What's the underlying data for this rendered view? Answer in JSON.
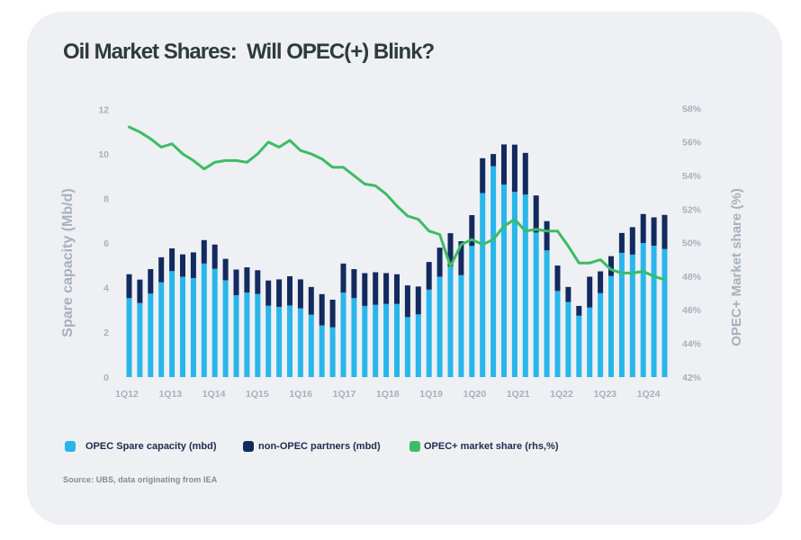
{
  "chart_data": {
    "type": "bar+line",
    "title": "Oil Market Shares:  Will OPEC(+) Blink?",
    "source": "Source: UBS, data originating from IEA",
    "categories": [
      "1Q12",
      "2Q12",
      "3Q12",
      "4Q12",
      "1Q13",
      "2Q13",
      "3Q13",
      "4Q13",
      "1Q14",
      "2Q14",
      "3Q14",
      "4Q14",
      "1Q15",
      "2Q15",
      "3Q15",
      "4Q15",
      "1Q16",
      "2Q16",
      "3Q16",
      "4Q16",
      "1Q17",
      "2Q17",
      "3Q17",
      "4Q17",
      "1Q18",
      "2Q18",
      "3Q18",
      "4Q18",
      "1Q19",
      "2Q19",
      "3Q19",
      "4Q19",
      "1Q20",
      "2Q20",
      "3Q20",
      "4Q20",
      "1Q21",
      "2Q21",
      "3Q21",
      "4Q21",
      "1Q22",
      "2Q22",
      "3Q22",
      "4Q22",
      "1Q23",
      "2Q23",
      "3Q23",
      "4Q23",
      "1Q24",
      "2Q24",
      "3Q24"
    ],
    "x_tick_labels": [
      "1Q12",
      "1Q13",
      "1Q14",
      "1Q15",
      "1Q16",
      "1Q17",
      "1Q18",
      "1Q19",
      "1Q20",
      "1Q21",
      "1Q22",
      "1Q23",
      "1Q24"
    ],
    "series": [
      {
        "name": "OPEC Spare capacity (mbd)",
        "type": "bar",
        "stack": "capacity",
        "axis": "left",
        "color": "#29b6ea",
        "values": [
          3.54,
          3.32,
          3.74,
          4.25,
          4.75,
          4.5,
          4.44,
          5.09,
          4.86,
          4.34,
          3.67,
          3.79,
          3.73,
          3.2,
          3.15,
          3.21,
          3.08,
          2.8,
          2.32,
          2.23,
          3.79,
          3.54,
          3.19,
          3.24,
          3.28,
          3.28,
          2.69,
          2.81,
          3.92,
          4.5,
          4.95,
          4.57,
          5.88,
          8.25,
          9.45,
          8.63,
          8.3,
          8.18,
          6.48,
          5.68,
          3.86,
          3.37,
          2.75,
          3.12,
          3.76,
          4.53,
          5.57,
          5.49,
          6.01,
          5.89,
          5.74
        ]
      },
      {
        "name": "non-OPEC partners (mbd)",
        "type": "bar",
        "stack": "capacity",
        "axis": "left",
        "color": "#132a5e",
        "values": [
          1.07,
          1.05,
          1.1,
          1.12,
          1.02,
          1.0,
          1.15,
          1.05,
          1.08,
          0.96,
          1.15,
          1.13,
          1.06,
          1.13,
          1.23,
          1.31,
          1.3,
          1.24,
          1.4,
          1.24,
          1.3,
          1.3,
          1.47,
          1.46,
          1.38,
          1.33,
          1.42,
          1.25,
          1.24,
          1.3,
          1.5,
          1.52,
          1.38,
          1.56,
          0.55,
          1.8,
          2.12,
          1.87,
          1.66,
          1.31,
          1.14,
          0.67,
          0.44,
          1.38,
          0.98,
          0.89,
          0.89,
          1.23,
          1.3,
          1.27,
          1.53
        ]
      },
      {
        "name": "OPEC+ market share (rhs,%)",
        "type": "line",
        "axis": "right",
        "color": "#3cbc64",
        "values": [
          56.9,
          56.6,
          56.2,
          55.7,
          55.9,
          55.3,
          54.9,
          54.4,
          54.8,
          54.9,
          54.9,
          54.8,
          55.3,
          56.0,
          55.7,
          56.1,
          55.5,
          55.3,
          55.0,
          54.5,
          54.5,
          54.0,
          53.5,
          53.4,
          52.9,
          52.2,
          51.6,
          51.4,
          50.7,
          50.5,
          48.6,
          49.9,
          50.2,
          49.9,
          50.2,
          51.0,
          51.4,
          50.7,
          50.8,
          50.7,
          50.7,
          49.8,
          48.8,
          48.8,
          49.0,
          48.4,
          48.2,
          48.2,
          48.3,
          48.0,
          47.8
        ]
      }
    ],
    "left_axis": {
      "title": "Spare capacity (Mb/d)",
      "ticks": [
        0,
        2,
        4,
        6,
        8,
        10,
        12
      ],
      "range": [
        0,
        12
      ]
    },
    "right_axis": {
      "title": "OPEC+ Market share (%)",
      "ticks": [
        "42%",
        "44%",
        "46%",
        "48%",
        "50%",
        "52%",
        "54%",
        "56%",
        "58%"
      ],
      "range": [
        42,
        58
      ]
    },
    "grid": false,
    "legend_position": "bottom"
  },
  "colors": {
    "page_background": "#ffffff",
    "card_background": "#eef0f3",
    "title_text": "#2e3b3b",
    "axis_text": "#a7b0bc",
    "legend_text": "#1e2b4f",
    "source_text": "#7f8b96",
    "bar_opec": "#29b6ea",
    "bar_non_opec": "#132a5e",
    "line_market_share": "#3cbc64"
  }
}
